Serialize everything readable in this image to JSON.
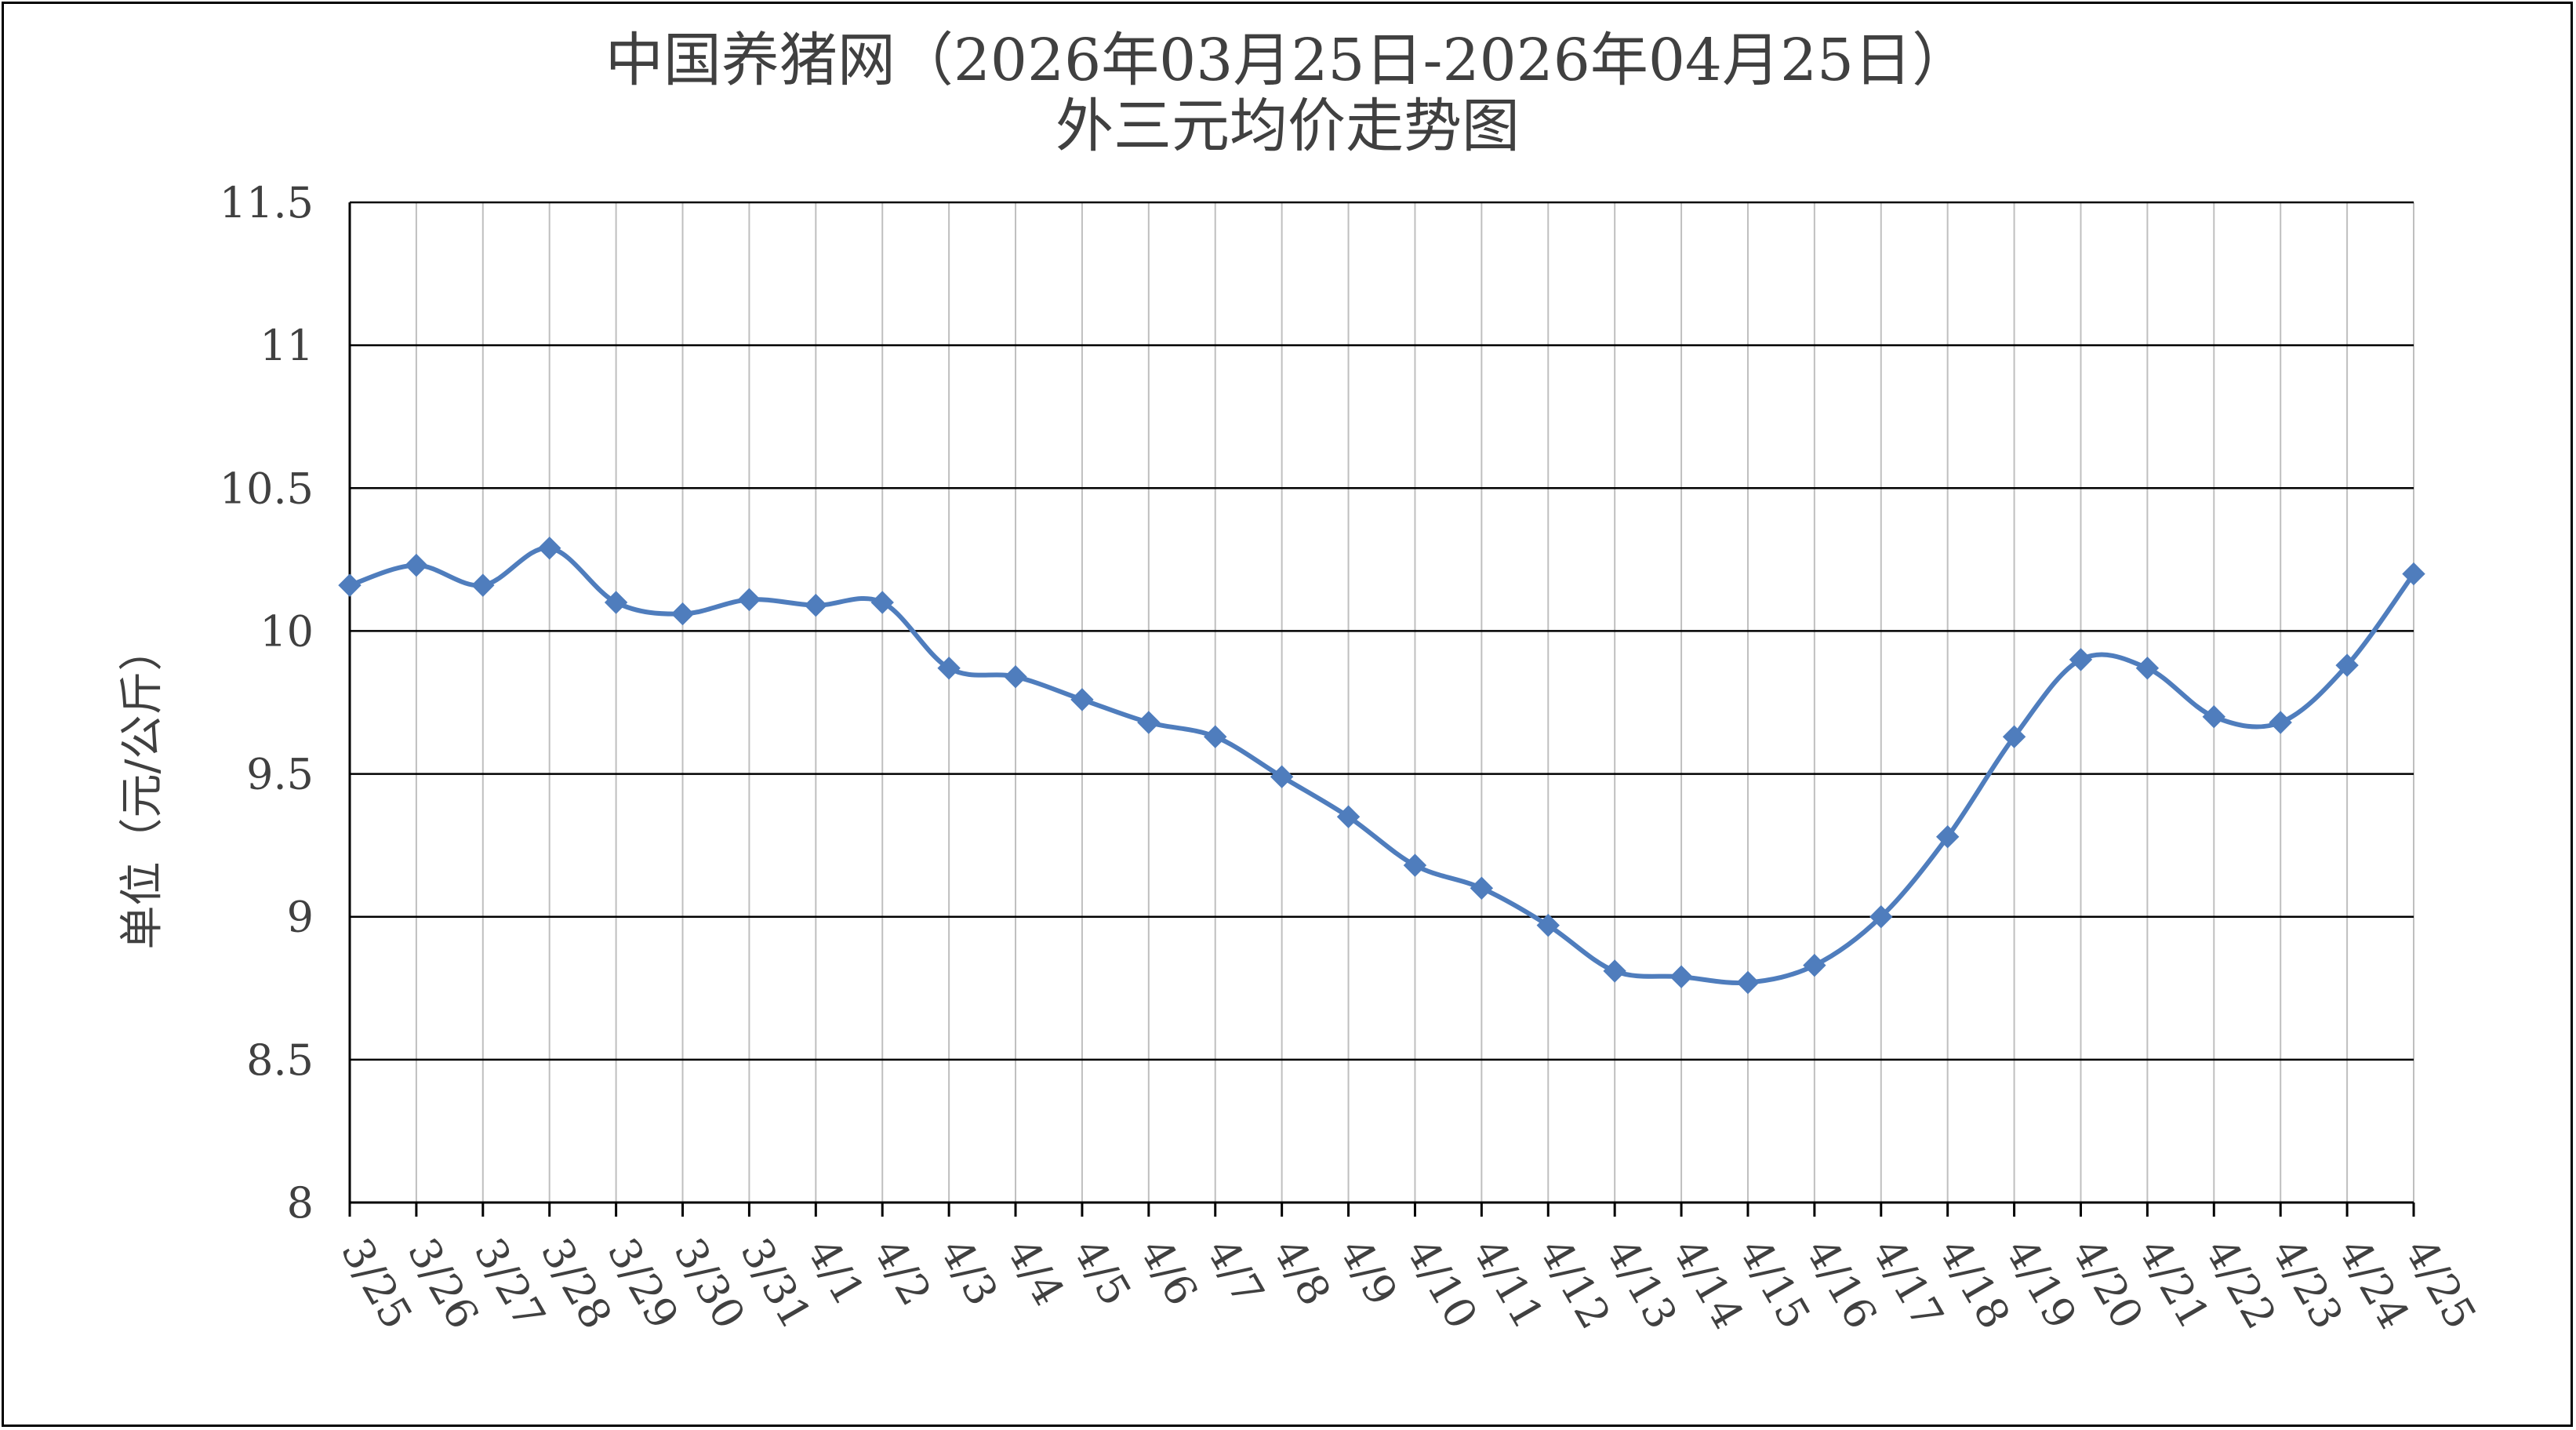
{
  "chart_data": {
    "type": "line",
    "title": "中国养猪网（2026年03月25日-2026年04月25日）",
    "subtitle": "外三元均价走势图",
    "xlabel": "",
    "ylabel": "单位（元/公斤）",
    "ylim": [
      8,
      11.5
    ],
    "yticks": [
      "11.5",
      "11",
      "10.5",
      "10",
      "9.5",
      "9",
      "8.5",
      "8"
    ],
    "grid": true,
    "legend": "none",
    "line_color": "#4F7DBD",
    "categories": [
      "3/25",
      "3/26",
      "3/27",
      "3/28",
      "3/29",
      "3/30",
      "3/31",
      "4/1",
      "4/2",
      "4/3",
      "4/4",
      "4/5",
      "4/6",
      "4/7",
      "4/8",
      "4/9",
      "4/10",
      "4/11",
      "4/12",
      "4/13",
      "4/14",
      "4/15",
      "4/16",
      "4/17",
      "4/18",
      "4/19",
      "4/20",
      "4/21",
      "4/22",
      "4/23",
      "4/24",
      "4/25"
    ],
    "values": [
      10.16,
      10.23,
      10.16,
      10.29,
      10.1,
      10.06,
      10.11,
      10.09,
      10.1,
      9.87,
      9.84,
      9.76,
      9.68,
      9.63,
      9.49,
      9.35,
      9.18,
      9.1,
      8.97,
      8.81,
      8.79,
      8.77,
      8.83,
      9.0,
      9.28,
      9.63,
      9.9,
      9.87,
      9.7,
      9.68,
      9.88,
      10.2
    ]
  }
}
